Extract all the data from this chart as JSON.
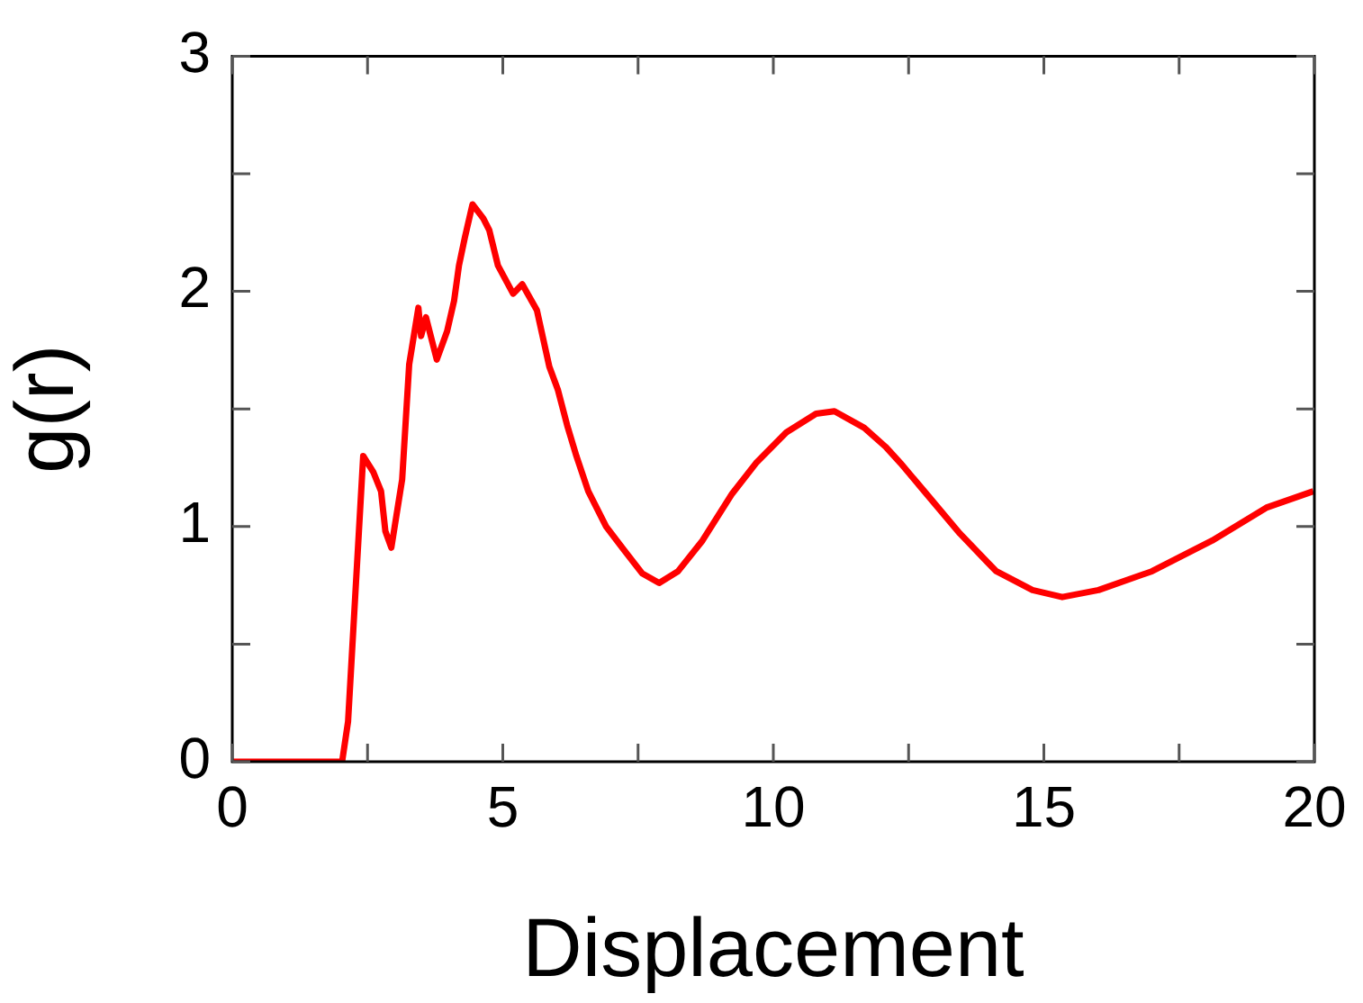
{
  "chart_data": {
    "type": "line",
    "xlabel": "Displacement",
    "ylabel": "g(r)",
    "x": [
      0,
      2.03,
      2.14,
      2.42,
      2.61,
      2.75,
      2.83,
      2.94,
      3.14,
      3.27,
      3.44,
      3.49,
      3.58,
      3.78,
      3.97,
      4.1,
      4.19,
      4.3,
      4.44,
      4.64,
      4.75,
      4.91,
      5.19,
      5.36,
      5.63,
      5.86,
      6.02,
      6.19,
      6.36,
      6.58,
      6.91,
      7.24,
      7.58,
      7.89,
      8.24,
      8.69,
      9.24,
      9.68,
      10.24,
      10.79,
      11.13,
      11.68,
      12.07,
      12.35,
      12.79,
      13.45,
      13.95,
      14.12,
      14.79,
      15.34,
      16.01,
      17,
      18.11,
      19.11,
      19.98
    ],
    "series": [
      {
        "color": "#ff0000",
        "values": [
          0,
          0,
          0.17,
          1.3,
          1.23,
          1.15,
          0.98,
          0.91,
          1.2,
          1.69,
          1.93,
          1.81,
          1.89,
          1.71,
          1.83,
          1.96,
          2.11,
          2.23,
          2.37,
          2.31,
          2.26,
          2.11,
          1.99,
          2.03,
          1.92,
          1.68,
          1.58,
          1.43,
          1.3,
          1.15,
          1,
          0.9,
          0.8,
          0.76,
          0.81,
          0.94,
          1.14,
          1.27,
          1.4,
          1.48,
          1.49,
          1.42,
          1.34,
          1.27,
          1.15,
          0.97,
          0.85,
          0.81,
          0.73,
          0.7,
          0.73,
          0.81,
          0.94,
          1.08,
          1.15
        ]
      }
    ],
    "xlim": [
      0,
      20
    ],
    "xticks": [
      0,
      {
        "value": 2.5,
        "label": null
      },
      5,
      {
        "value": 7.5,
        "label": null
      },
      10,
      {
        "value": 12.5,
        "label": null
      },
      15,
      {
        "value": 17.5,
        "label": null
      },
      20
    ],
    "ylim": [
      0,
      3
    ],
    "yticks": [
      0,
      {
        "value": 0.5,
        "label": null
      },
      1,
      {
        "value": 1.5,
        "label": null
      },
      2,
      {
        "value": 2.5,
        "label": null
      },
      3
    ],
    "grid": false,
    "legend": false,
    "marker": "none",
    "line_style": "solid"
  }
}
